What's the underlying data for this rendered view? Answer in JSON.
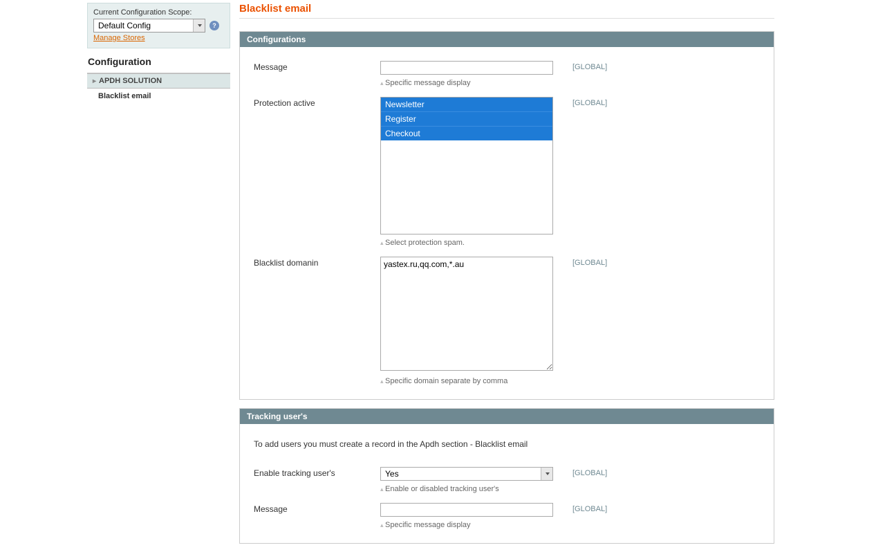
{
  "sidebar": {
    "scope_label": "Current Configuration Scope:",
    "scope_value": "Default Config",
    "manage_stores": "Manage Stores",
    "config_title": "Configuration",
    "nav_section": "APDH SOLUTION",
    "nav_item": "Blacklist email"
  },
  "page": {
    "title": "Blacklist email"
  },
  "fs1": {
    "header": "Configurations",
    "message_label": "Message",
    "message_value": "",
    "message_hint": "Specific message display",
    "protection_label": "Protection active",
    "protection_options": {
      "o0": "Newsletter",
      "o1": "Register",
      "o2": "Checkout"
    },
    "protection_hint": "Select protection spam.",
    "blacklist_label": "Blacklist domanin",
    "blacklist_value": "yastex.ru,qq.com,*.au",
    "blacklist_hint": "Specific domain separate by comma"
  },
  "fs2": {
    "header": "Tracking user's",
    "note": "To add users you must create a record in the Apdh section - Blacklist email",
    "enable_label": "Enable tracking user's",
    "enable_value": "Yes",
    "enable_hint": "Enable or disabled tracking user's",
    "message_label": "Message",
    "message_value": "",
    "message_hint": "Specific message display"
  },
  "scope_text": "[GLOBAL]"
}
